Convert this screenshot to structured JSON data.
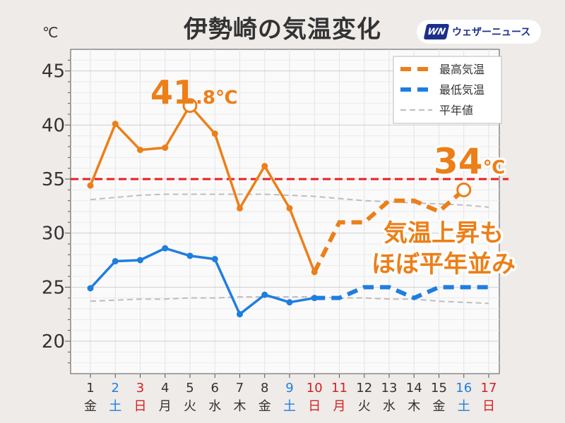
{
  "title": "伊勢崎の気温変化",
  "unit": "℃",
  "logo": {
    "mark": "WN",
    "name": "ウェザーニュース"
  },
  "chart_data": {
    "type": "line",
    "x": [
      "1",
      "2",
      "3",
      "4",
      "5",
      "6",
      "7",
      "8",
      "9",
      "10",
      "11",
      "12",
      "13",
      "14",
      "15",
      "16",
      "17"
    ],
    "weekdays": [
      "金",
      "土",
      "日",
      "月",
      "火",
      "水",
      "木",
      "金",
      "土",
      "日",
      "月",
      "火",
      "水",
      "木",
      "金",
      "土",
      "日"
    ],
    "dayColors": [
      "#333333",
      "#1e7ee0",
      "#d42020",
      "#333333",
      "#333333",
      "#333333",
      "#333333",
      "#333333",
      "#1e7ee0",
      "#d42020",
      "#d42020",
      "#333333",
      "#333333",
      "#333333",
      "#333333",
      "#1e7ee0",
      "#d42020"
    ],
    "ylim": [
      17,
      47
    ],
    "yticks": [
      20,
      25,
      30,
      35,
      40,
      45
    ],
    "series": [
      {
        "name": "最高気温",
        "color": "#ec7f18",
        "observed": [
          34.4,
          40.1,
          37.7,
          37.9,
          41.8,
          39.2,
          32.3,
          36.2,
          32.3,
          26.4
        ],
        "forecast": [
          26.4,
          31,
          31,
          33,
          33,
          32,
          34
        ]
      },
      {
        "name": "最低気温",
        "color": "#1e7ee0",
        "observed": [
          24.9,
          27.4,
          27.5,
          28.6,
          27.9,
          27.6,
          22.5,
          24.3,
          23.6,
          24.0
        ],
        "forecast": [
          24,
          24,
          25,
          25,
          24,
          25,
          25,
          25
        ]
      },
      {
        "name": "平年値",
        "color": "#bdbdbd",
        "normal_high": [
          33.1,
          33.3,
          33.5,
          33.6,
          33.6,
          33.6,
          33.6,
          33.6,
          33.5,
          33.4,
          33.2,
          33.0,
          32.9,
          32.8,
          32.7,
          32.6,
          32.4
        ],
        "normal_low": [
          23.7,
          23.8,
          23.9,
          23.9,
          24.0,
          24.0,
          24.1,
          24.1,
          24.1,
          24.1,
          24.0,
          24.0,
          23.9,
          23.9,
          23.7,
          23.6,
          23.5
        ]
      }
    ],
    "reference_line": {
      "value": 35,
      "color": "#e62020"
    },
    "legend": [
      "最高気温",
      "最低気温",
      "平年値"
    ],
    "legend_position": "top-right",
    "peak_label": {
      "big": "41",
      "small": ".8",
      "unit": "℃",
      "day": 5,
      "value": 41.8
    },
    "forecast_label": {
      "big": "34",
      "unit": "℃",
      "day": 16,
      "value": 34
    },
    "annotation": {
      "line1": "気温上昇も",
      "line2": "ほぼ平年並み"
    }
  }
}
